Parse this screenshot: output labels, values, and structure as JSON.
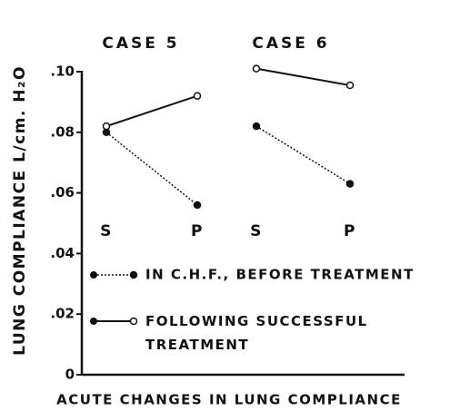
{
  "chart_data": {
    "type": "line",
    "y_label": "LUNG COMPLIANCE L/cm. H₂O",
    "x_label": "ACUTE CHANGES IN LUNG COMPLIANCE",
    "ylim": [
      0,
      0.1
    ],
    "yticks": [
      0,
      {
        "value": 0.02,
        "label": ".02"
      },
      {
        "value": 0.04,
        "label": ".04"
      },
      {
        "value": 0.06,
        "label": ".06"
      },
      {
        "value": 0.08,
        "label": ".08"
      },
      {
        "value": 0.1,
        "label": ".10"
      }
    ],
    "series_styles": [
      {
        "name": "IN C.H.F., BEFORE TREATMENT",
        "color": "#111111",
        "line_style": "dotted",
        "marker": "filled"
      },
      {
        "name": "FOLLOWING SUCCESSFUL TREATMENT",
        "color": "#111111",
        "line_style": "solid",
        "marker": "open"
      }
    ],
    "panels": [
      {
        "title": "CASE 5",
        "categories": [
          "S",
          "P"
        ],
        "series": [
          {
            "values": [
              0.08,
              0.056
            ]
          },
          {
            "values": [
              0.082,
              0.092
            ]
          }
        ]
      },
      {
        "title": "CASE 6",
        "categories": [
          "S",
          "P"
        ],
        "series": [
          {
            "values": [
              0.082,
              0.063
            ]
          },
          {
            "values": [
              0.101,
              0.0955
            ]
          }
        ]
      }
    ]
  }
}
